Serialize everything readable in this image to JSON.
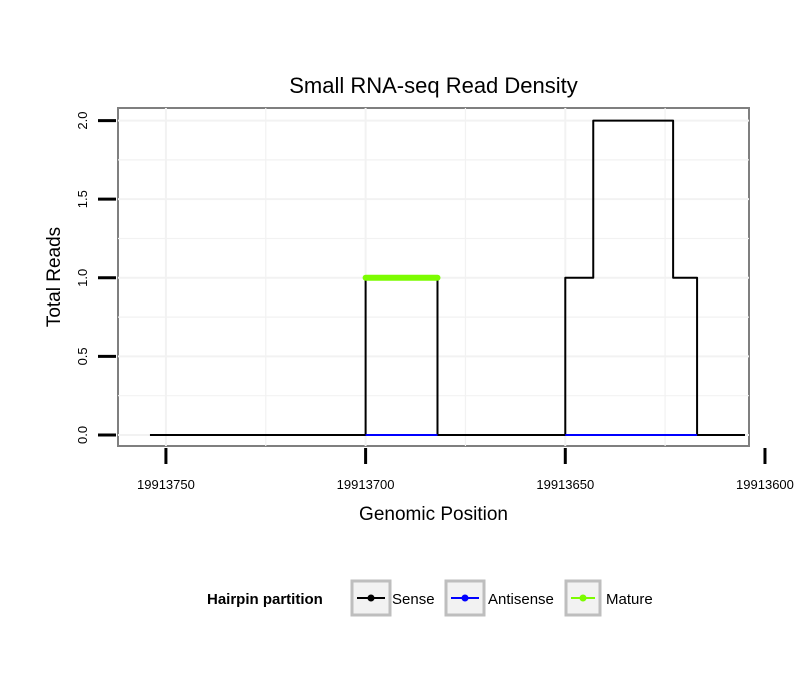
{
  "chart_data": {
    "type": "line",
    "title": "Small RNA-seq Read Density",
    "xlabel": "Genomic Position",
    "ylabel": "Total Reads",
    "x_reversed": true,
    "xlim": [
      19913762,
      19913604
    ],
    "ylim": [
      -0.07,
      2.08
    ],
    "x_ticks": [
      19913750,
      19913700,
      19913650,
      19913600
    ],
    "x_tick_labels": [
      "19913750",
      "19913700",
      "19913650",
      "19913600"
    ],
    "y_ticks": [
      0.0,
      0.5,
      1.0,
      1.5,
      2.0
    ],
    "y_tick_labels": [
      "0.0",
      "0.5",
      "1.0",
      "1.5",
      "2.0"
    ],
    "grid": true,
    "legend": {
      "title": "Hairpin partition",
      "position": "bottom",
      "entries": [
        "Sense",
        "Antisense",
        "Mature"
      ]
    },
    "series": [
      {
        "name": "Sense",
        "color": "#000000",
        "x": [
          19913754,
          19913700,
          19913700,
          19913682,
          19913682,
          19913650,
          19913650,
          19913643,
          19913643,
          19913623,
          19913623,
          19913617,
          19913617,
          19913605
        ],
        "y": [
          0,
          0,
          1,
          1,
          0,
          0,
          1,
          1,
          2,
          2,
          1,
          1,
          0,
          0
        ]
      },
      {
        "name": "Antisense",
        "color": "#0000ff",
        "x": [
          19913700,
          19913682,
          null,
          19913650,
          19913617
        ],
        "y": [
          0,
          0,
          null,
          0,
          0
        ]
      },
      {
        "name": "Mature",
        "color": "#7cfc00",
        "x": [
          19913700,
          19913682
        ],
        "y": [
          1,
          1
        ]
      }
    ]
  }
}
